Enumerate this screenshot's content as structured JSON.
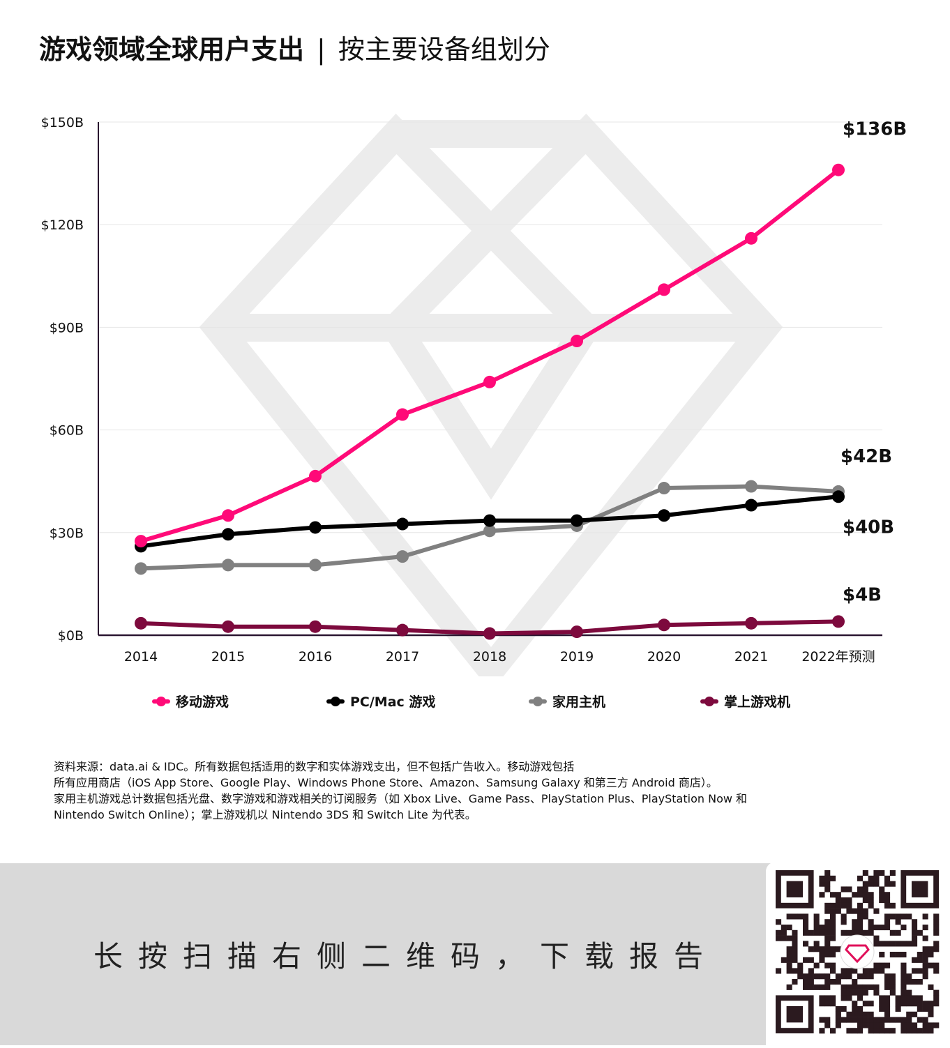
{
  "title": {
    "main": "游戏领域全球用户支出",
    "separator": "|",
    "sub": "按主要设备组划分"
  },
  "chart_data": {
    "type": "line",
    "categories": [
      "2014",
      "2015",
      "2016",
      "2017",
      "2018",
      "2019",
      "2020",
      "2021",
      "2022年预测"
    ],
    "ylim": [
      0,
      150
    ],
    "yticks": [
      0,
      30,
      60,
      90,
      120,
      150
    ],
    "ytick_labels": [
      "$0B",
      "$30B",
      "$60B",
      "$90B",
      "$120B",
      "$150B"
    ],
    "grid": true,
    "series": [
      {
        "name": "移动游戏",
        "color": "#ff0a78",
        "values": [
          27.5,
          35,
          46.5,
          64.5,
          74,
          86,
          101,
          116,
          136
        ],
        "end_label": "$136B"
      },
      {
        "name": "PC/Mac 游戏",
        "color": "#000000",
        "values": [
          26,
          29.5,
          31.5,
          32.5,
          33.5,
          33.5,
          35,
          38,
          40.5
        ],
        "end_label": "$40B"
      },
      {
        "name": "家用主机",
        "color": "#808080",
        "values": [
          19.5,
          20.5,
          20.5,
          23,
          30.5,
          32,
          43,
          43.5,
          42
        ],
        "end_label": "$42B"
      },
      {
        "name": "掌上游戏机",
        "color": "#7d0a3d",
        "values": [
          3.5,
          2.5,
          2.5,
          1.5,
          0.5,
          1,
          3,
          3.5,
          4
        ],
        "end_label": "$4B"
      }
    ]
  },
  "notes": [
    "资料来源：data.ai & IDC。所有数据包括适用的数字和实体游戏支出，但不包括广告收入。移动游戏包括",
    " 所有应用商店（iOS App Store、Google Play、Windows Phone Store、Amazon、Samsung Galaxy 和第三方 Android 商店）。",
    "家用主机游戏总计数据包括光盘、数字游戏和游戏相关的订阅服务（如 Xbox Live、Game Pass、PlayStation Plus、PlayStation Now 和",
    "Nintendo Switch Online）；掌上游戏机以 Nintendo 3DS 和 Switch Lite 为代表。"
  ],
  "footer": {
    "cta": "长按扫描右侧二维码，下载报告"
  },
  "icons": {
    "qr": "qr-code-icon",
    "watermark": "diamond-logo-icon"
  }
}
